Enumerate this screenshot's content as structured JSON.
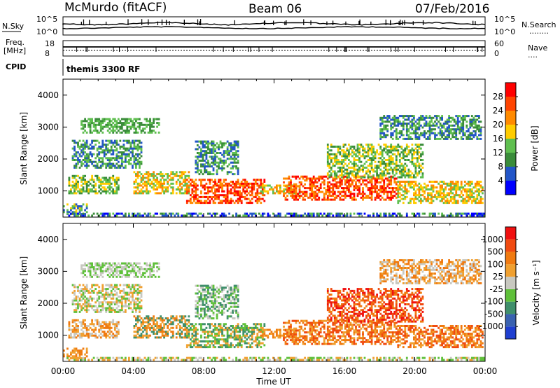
{
  "header": {
    "station": "McMurdo (fitACF)",
    "beam": "Beam 06",
    "date": "07/Feb/2016"
  },
  "top_panels": {
    "left_labels": {
      "nsky": "N.Sky",
      "freq_1": "Freq.",
      "freq_2": "[MHz]",
      "cpid": "CPID"
    },
    "right_labels": {
      "nsearch": "N.Search",
      "nsearch_dots": "........",
      "nave": "Nave",
      "nave_dots": "...."
    },
    "nsky_ticks": [
      "10^5",
      "10^0"
    ],
    "nsearch_ticks": [
      "10^5",
      "10^0"
    ],
    "freq_ticks": [
      "18",
      "8"
    ],
    "nave_ticks": [
      "60",
      "0"
    ],
    "cpid_text": "themis 3300 RF"
  },
  "chart_data": [
    {
      "type": "heatmap",
      "name": "power",
      "xlabel": "",
      "ylabel": "Slant Range [km]",
      "xlim": [
        0,
        24
      ],
      "ylim": [
        180,
        4500
      ],
      "yticks": [
        "1000",
        "2000",
        "3000",
        "4000"
      ],
      "colorbar": {
        "label": "Power [dB]",
        "ticks": [
          "4",
          "8",
          "12",
          "16",
          "20",
          "24",
          "28"
        ],
        "colors": [
          "#0000ff",
          "#2255c8",
          "#3a8c3a",
          "#5fbf4f",
          "#ffcc00",
          "#ff8a00",
          "#ff4400",
          "#ff0000"
        ]
      }
    },
    {
      "type": "heatmap",
      "name": "velocity",
      "xlabel": "Time UT",
      "ylabel": "Slant Range [km]",
      "xlim": [
        0,
        24
      ],
      "ylim": [
        180,
        4500
      ],
      "xticks": [
        "00:00",
        "04:00",
        "08:00",
        "12:00",
        "16:00",
        "20:00",
        "00:00"
      ],
      "yticks": [
        "1000",
        "2000",
        "3000",
        "4000"
      ],
      "colorbar": {
        "label": "Velocity [m s⁻¹]",
        "ticks": [
          "1000",
          "500",
          "100",
          "25",
          "-25",
          "-100",
          "-500",
          "-1000"
        ],
        "colors": [
          "#1f3fd0",
          "#3a62b0",
          "#3f8f6b",
          "#5fc03a",
          "#c8c8c0",
          "#f0a030",
          "#f07a10",
          "#f04a10",
          "#f01010"
        ]
      }
    }
  ]
}
